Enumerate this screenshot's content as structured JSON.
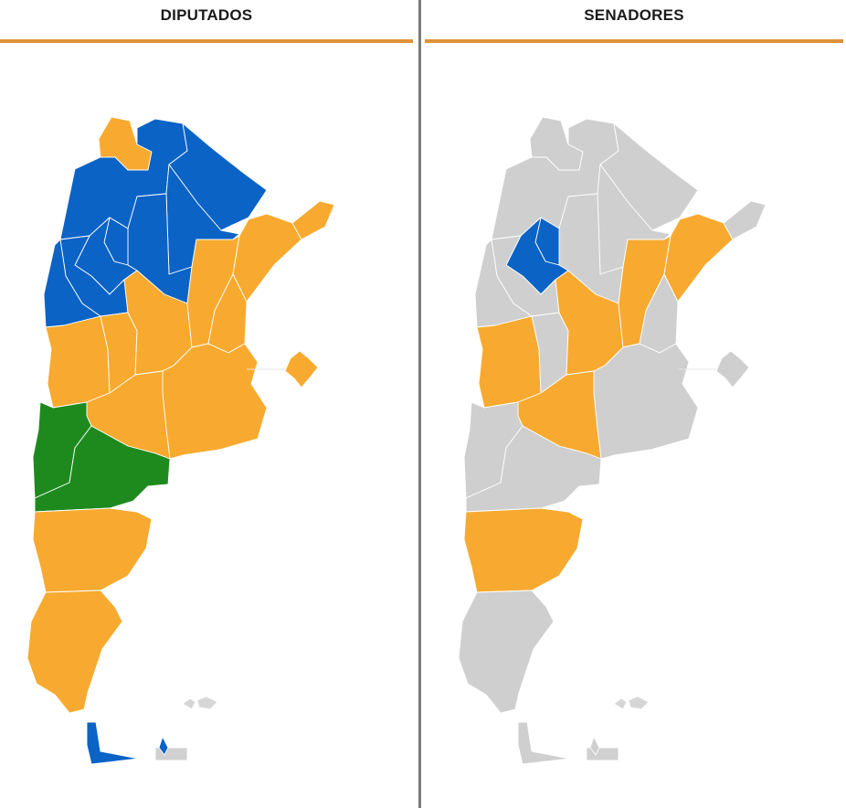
{
  "panels": [
    {
      "title": "DIPUTADOS"
    },
    {
      "title": "SENADORES"
    }
  ],
  "colors": {
    "orange": "#F7AA2F",
    "blue": "#0A63C5",
    "green": "#1E8A1E",
    "gray": "#CFCFCF",
    "rule": "#E0923A"
  },
  "fills": {
    "diputados": {
      "jujuy": "orange",
      "salta": "blue",
      "formosa": "blue",
      "chaco": "blue",
      "santiago-del-estero": "blue",
      "tucuman": "blue",
      "catamarca": "blue",
      "la-rioja": "blue",
      "san-juan": "blue",
      "mendoza": "orange",
      "san-luis": "orange",
      "cordoba": "orange",
      "santa-fe": "orange",
      "entre-rios": "orange",
      "corrientes": "orange",
      "misiones": "orange",
      "buenos-aires": "orange",
      "la-pampa": "orange",
      "neuquen": "green",
      "rio-negro": "green",
      "chubut": "orange",
      "santa-cruz": "orange",
      "tierra-del-fuego": "blue",
      "caba": "orange"
    },
    "senadores": {
      "jujuy": "gray",
      "salta": "gray",
      "formosa": "gray",
      "chaco": "gray",
      "santiago-del-estero": "gray",
      "tucuman": "blue",
      "catamarca": "blue",
      "la-rioja": "gray",
      "san-juan": "gray",
      "mendoza": "orange",
      "san-luis": "gray",
      "cordoba": "orange",
      "santa-fe": "orange",
      "entre-rios": "gray",
      "corrientes": "orange",
      "misiones": "gray",
      "buenos-aires": "gray",
      "la-pampa": "orange",
      "neuquen": "gray",
      "rio-negro": "gray",
      "chubut": "orange",
      "santa-cruz": "gray",
      "tierra-del-fuego": "gray",
      "caba": "gray"
    }
  }
}
